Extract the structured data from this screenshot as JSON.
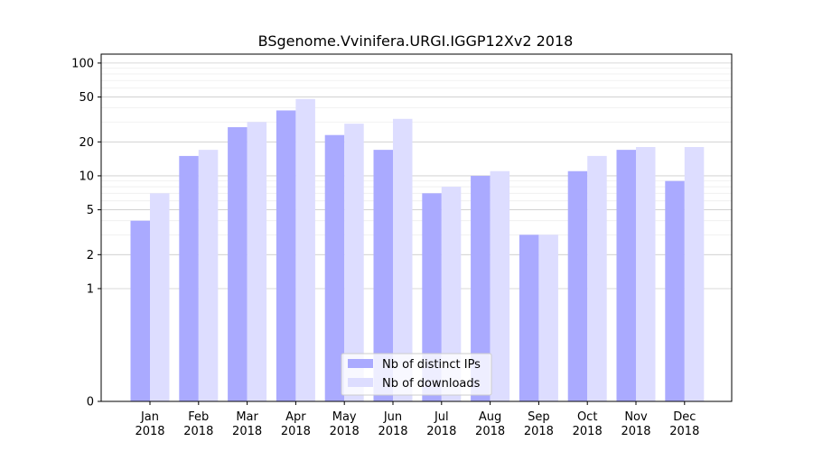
{
  "chart_data": {
    "type": "bar",
    "title": "BSgenome.Vvinifera.URGI.IGGP12Xv2 2018",
    "xlabel": "",
    "ylabel": "",
    "yscale": "symlog",
    "ylim": [
      0,
      120
    ],
    "yticks": [
      {
        "value": 0,
        "label": "0"
      },
      {
        "value": 1,
        "label": "1"
      },
      {
        "value": 2,
        "label": "2"
      },
      {
        "value": 5,
        "label": "5"
      },
      {
        "value": 10,
        "label": "10"
      },
      {
        "value": 20,
        "label": "20"
      },
      {
        "value": 50,
        "label": "50"
      },
      {
        "value": 100,
        "label": "100"
      }
    ],
    "grid": true,
    "legend_position": "lower-center",
    "categories": [
      {
        "month": "Jan",
        "year": "2018"
      },
      {
        "month": "Feb",
        "year": "2018"
      },
      {
        "month": "Mar",
        "year": "2018"
      },
      {
        "month": "Apr",
        "year": "2018"
      },
      {
        "month": "May",
        "year": "2018"
      },
      {
        "month": "Jun",
        "year": "2018"
      },
      {
        "month": "Jul",
        "year": "2018"
      },
      {
        "month": "Aug",
        "year": "2018"
      },
      {
        "month": "Sep",
        "year": "2018"
      },
      {
        "month": "Oct",
        "year": "2018"
      },
      {
        "month": "Nov",
        "year": "2018"
      },
      {
        "month": "Dec",
        "year": "2018"
      }
    ],
    "series": [
      {
        "name": "Nb of distinct IPs",
        "color": "#aaaaff",
        "values": [
          4,
          15,
          27,
          38,
          23,
          17,
          7,
          10,
          3,
          11,
          17,
          9
        ]
      },
      {
        "name": "Nb of downloads",
        "color": "#ddddff",
        "values": [
          7,
          17,
          30,
          48,
          29,
          32,
          8,
          11,
          3,
          15,
          18,
          18
        ]
      }
    ]
  }
}
